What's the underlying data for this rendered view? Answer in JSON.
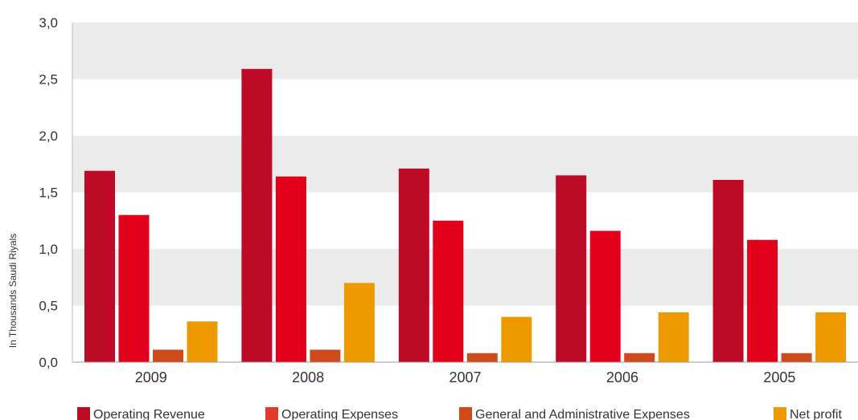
{
  "chart_data": {
    "type": "bar",
    "ylabel": "In Thousands Saudi Riyals",
    "ylim": [
      0,
      3.0
    ],
    "yticks": [
      "0,0",
      "0,5",
      "1,0",
      "1,5",
      "2,0",
      "2,5",
      "3,0"
    ],
    "ytick_values": [
      0,
      0.5,
      1.0,
      1.5,
      2.0,
      2.5,
      3.0
    ],
    "categories": [
      "2009",
      "2008",
      "2007",
      "2006",
      "2005"
    ],
    "series": [
      {
        "name": "Operating Revenue",
        "color": "#bc0a27",
        "values": [
          1.69,
          2.59,
          1.71,
          1.65,
          1.61
        ]
      },
      {
        "name": "Operating Expenses",
        "color": "#e2001a",
        "values": [
          1.3,
          1.64,
          1.25,
          1.16,
          1.08
        ]
      },
      {
        "name": "General and Administrative Expenses",
        "color": "#cf4a1b",
        "values": [
          0.11,
          0.11,
          0.08,
          0.08,
          0.08
        ]
      },
      {
        "name": "Net profit",
        "color": "#ef9900",
        "values": [
          0.36,
          0.7,
          0.4,
          0.44,
          0.44
        ]
      }
    ],
    "legend_swatch_colors": [
      "#bc0a27",
      "#e23a2d",
      "#cf4a1b",
      "#ef9900"
    ],
    "band_color": "#ebebeb",
    "legend_position": "bottom",
    "grid": "alternating horizontal bands"
  }
}
